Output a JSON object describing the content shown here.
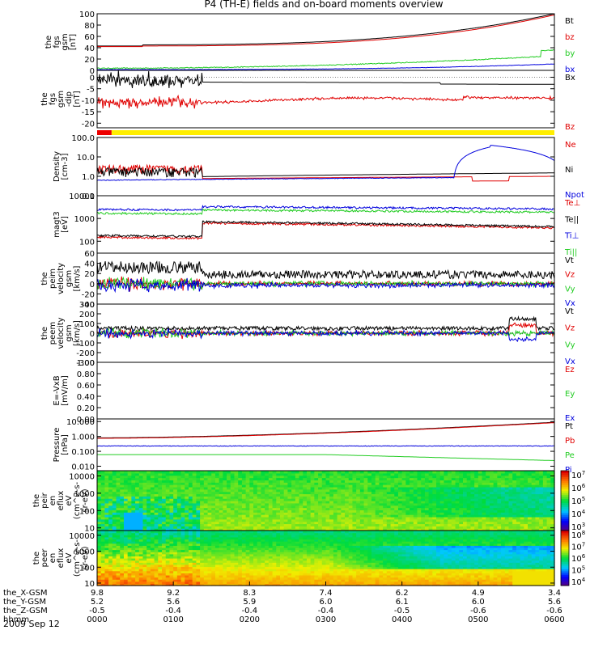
{
  "title": "P4 (TH-E) fields and on-board moments overview",
  "date": "2009 Sep 12",
  "colors": {
    "black": "#000000",
    "red": "#e00000",
    "green": "#22cc22",
    "blue": "#0000dd"
  },
  "chart_data": [
    {
      "id": "fgs_gsm",
      "type": "line",
      "ylabel": [
        "the",
        "fgs",
        "gsm",
        "[nT]"
      ],
      "ylim": [
        0,
        100
      ],
      "ticks": [
        0,
        20,
        40,
        60,
        80,
        100
      ],
      "series": [
        {
          "name": "Bt",
          "color": "black"
        },
        {
          "name": "bz",
          "color": "red"
        },
        {
          "name": "by",
          "color": "green"
        },
        {
          "name": "bx",
          "color": "blue"
        }
      ]
    },
    {
      "id": "fgs_gsm_dip",
      "type": "line",
      "ylabel": [
        "the",
        "fgs",
        "gsm",
        "-dip",
        "[nT]"
      ],
      "ylim": [
        -22,
        3
      ],
      "ticks": [
        -20,
        -15,
        -10,
        -5,
        0
      ],
      "series": [
        {
          "name": "Bx",
          "color": "black"
        },
        {
          "name": "Bz",
          "color": "red"
        }
      ]
    },
    {
      "id": "status_bar",
      "type": "bar",
      "colors": [
        "red",
        "yellow"
      ],
      "split_hour": 0.19
    },
    {
      "id": "density",
      "type": "line",
      "ylabel": [
        "Density",
        "[cm-3]"
      ],
      "ylim": [
        0.1,
        100
      ],
      "log": true,
      "ticks": [
        "0.1",
        "1.0",
        "10.0",
        "100.0"
      ],
      "series": [
        {
          "name": "Ne",
          "color": "red"
        },
        {
          "name": "Ni",
          "color": "black"
        },
        {
          "name": "Npot",
          "color": "blue"
        }
      ]
    },
    {
      "id": "temperature",
      "type": "line",
      "ylabel": [
        "magt3",
        "[eV]"
      ],
      "ylim": [
        30,
        10000
      ],
      "log": true,
      "ticks": [
        "100",
        "1000",
        "10000"
      ],
      "series": [
        {
          "name": "Te⊥",
          "color": "red"
        },
        {
          "name": "Te||",
          "color": "black"
        },
        {
          "name": "Ti⊥",
          "color": "blue"
        },
        {
          "name": "Ti||",
          "color": "green"
        }
      ]
    },
    {
      "id": "peim_velocity",
      "type": "line",
      "ylabel": [
        "the",
        "peim",
        "velocity",
        "gsm",
        "[km/s]"
      ],
      "ylim": [
        -40,
        60
      ],
      "ticks": [
        -40,
        -20,
        0,
        20,
        40,
        60
      ],
      "series": [
        {
          "name": "Vt",
          "color": "black"
        },
        {
          "name": "Vz",
          "color": "red"
        },
        {
          "name": "Vy",
          "color": "green"
        },
        {
          "name": "Vx",
          "color": "blue"
        }
      ]
    },
    {
      "id": "peem_velocity",
      "type": "line",
      "ylabel": [
        "the",
        "peem",
        "velocity",
        "gsm",
        "[km/s]"
      ],
      "ylim": [
        -300,
        300
      ],
      "ticks": [
        -300,
        -200,
        -100,
        0,
        100,
        200,
        300
      ],
      "series": [
        {
          "name": "Vt",
          "color": "black"
        },
        {
          "name": "Vz",
          "color": "red"
        },
        {
          "name": "Vy",
          "color": "green"
        },
        {
          "name": "Vx",
          "color": "blue"
        }
      ]
    },
    {
      "id": "efield",
      "type": "line",
      "ylabel": [
        "E=-VxB",
        "[mV/m]"
      ],
      "ylim": [
        0,
        1
      ],
      "ticks": [
        "0.00",
        "0.20",
        "0.40",
        "0.60",
        "0.80",
        "1.00"
      ],
      "series": [
        {
          "name": "Ez",
          "color": "red"
        },
        {
          "name": "Ey",
          "color": "green"
        },
        {
          "name": "Ex",
          "color": "blue"
        }
      ]
    },
    {
      "id": "pressure",
      "type": "line",
      "ylabel": [
        "Pressure",
        "[nPa]"
      ],
      "ylim": [
        0.005,
        15
      ],
      "log": true,
      "ticks": [
        "0.010",
        "0.100",
        "1.000",
        "10.000"
      ],
      "series": [
        {
          "name": "Pt",
          "color": "black"
        },
        {
          "name": "Pb",
          "color": "red"
        },
        {
          "name": "Pe",
          "color": "green"
        },
        {
          "name": "Pi",
          "color": "blue"
        }
      ]
    },
    {
      "id": "peir_spectrogram",
      "type": "heatmap",
      "ylabel": [
        "the",
        "peir",
        "en",
        "eflux",
        "eV",
        "(cm^2-s-",
        "sr-eV)"
      ],
      "ylim": [
        7,
        20000
      ],
      "log": true,
      "ticks": [
        "10",
        "100",
        "1000",
        "10000"
      ],
      "colorbar": [
        "10^3",
        "10^4",
        "10^5",
        "10^6",
        "10^7"
      ]
    },
    {
      "id": "peer_spectrogram",
      "type": "heatmap",
      "ylabel": [
        "the",
        "peer",
        "en",
        "eflux",
        "eV",
        "(cm^2-s-",
        "sr-eV)"
      ],
      "ylim": [
        7,
        20000
      ],
      "log": true,
      "ticks": [
        "10",
        "100",
        "1000",
        "10000"
      ],
      "colorbar": [
        "10^4",
        "10^5",
        "10^6",
        "10^7",
        "10^8"
      ]
    }
  ],
  "x_axis": {
    "row_labels": [
      "the_X-GSM",
      "the_Y-GSM",
      "the_Z-GSM",
      "hhmm"
    ],
    "columns": [
      {
        "x": "9.8",
        "y": "5.2",
        "z": "-0.5",
        "time": "0000"
      },
      {
        "x": "9.2",
        "y": "5.6",
        "z": "-0.4",
        "time": "0100"
      },
      {
        "x": "8.3",
        "y": "5.9",
        "z": "-0.4",
        "time": "0200"
      },
      {
        "x": "7.4",
        "y": "6.0",
        "z": "-0.4",
        "time": "0300"
      },
      {
        "x": "6.2",
        "y": "6.1",
        "z": "-0.5",
        "time": "0400"
      },
      {
        "x": "4.9",
        "y": "6.0",
        "z": "-0.6",
        "time": "0500"
      },
      {
        "x": "3.4",
        "y": "5.6",
        "z": "-0.6",
        "time": "0600"
      }
    ]
  }
}
